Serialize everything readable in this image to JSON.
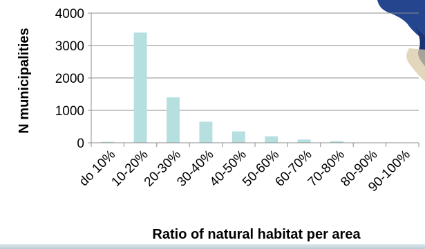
{
  "chart_data": {
    "type": "bar",
    "categories": [
      "do 10%",
      "10-20%",
      "20-30%",
      "30-40%",
      "40-50%",
      "50-60%",
      "60-70%",
      "70-80%",
      "80-90%",
      "90-100%"
    ],
    "values": [
      30,
      3400,
      1400,
      650,
      350,
      200,
      100,
      50,
      10,
      5
    ],
    "xlabel": "Ratio of natural habitat per area",
    "ylabel": "N municipalities",
    "ylim": [
      0,
      4000
    ],
    "yticks": [
      0,
      1000,
      2000,
      3000,
      4000
    ],
    "grid": true,
    "bar_color": "#b6dfe0",
    "grid_color": "#8c8c8c",
    "legend": "none"
  }
}
